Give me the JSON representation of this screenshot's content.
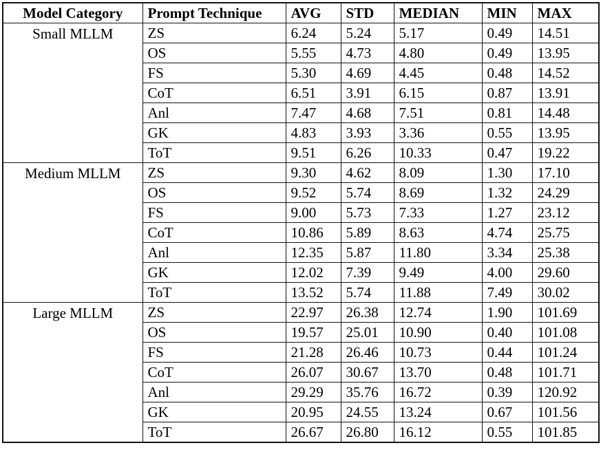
{
  "table": {
    "columns": [
      "Model Category",
      "Prompt Technique",
      "AVG",
      "STD",
      "MEDIAN",
      "MIN",
      "MAX"
    ],
    "groups": [
      {
        "category": "Small MLLM",
        "rows": [
          {
            "technique": "ZS",
            "avg": "6.24",
            "std": "5.24",
            "median": "5.17",
            "min": "0.49",
            "max": "14.51"
          },
          {
            "technique": "OS",
            "avg": "5.55",
            "std": "4.73",
            "median": "4.80",
            "min": "0.49",
            "max": "13.95"
          },
          {
            "technique": "FS",
            "avg": "5.30",
            "std": "4.69",
            "median": "4.45",
            "min": "0.48",
            "max": "14.52"
          },
          {
            "technique": "CoT",
            "avg": "6.51",
            "std": "3.91",
            "median": "6.15",
            "min": "0.87",
            "max": "13.91"
          },
          {
            "technique": "Anl",
            "avg": "7.47",
            "std": "4.68",
            "median": "7.51",
            "min": "0.81",
            "max": "14.48"
          },
          {
            "technique": "GK",
            "avg": "4.83",
            "std": "3.93",
            "median": "3.36",
            "min": "0.55",
            "max": "13.95"
          },
          {
            "technique": "ToT",
            "avg": "9.51",
            "std": "6.26",
            "median": "10.33",
            "min": "0.47",
            "max": "19.22"
          }
        ]
      },
      {
        "category": "Medium MLLM",
        "rows": [
          {
            "technique": "ZS",
            "avg": "9.30",
            "std": "4.62",
            "median": "8.09",
            "min": "1.30",
            "max": "17.10"
          },
          {
            "technique": "OS",
            "avg": "9.52",
            "std": "5.74",
            "median": "8.69",
            "min": "1.32",
            "max": "24.29"
          },
          {
            "technique": "FS",
            "avg": "9.00",
            "std": "5.73",
            "median": "7.33",
            "min": "1.27",
            "max": "23.12"
          },
          {
            "technique": "CoT",
            "avg": "10.86",
            "std": "5.89",
            "median": "8.63",
            "min": "4.74",
            "max": "25.75"
          },
          {
            "technique": "Anl",
            "avg": "12.35",
            "std": "5.87",
            "median": "11.80",
            "min": "3.34",
            "max": "25.38"
          },
          {
            "technique": "GK",
            "avg": "12.02",
            "std": "7.39",
            "median": "9.49",
            "min": "4.00",
            "max": "29.60"
          },
          {
            "technique": "ToT",
            "avg": "13.52",
            "std": "5.74",
            "median": "11.88",
            "min": "7.49",
            "max": "30.02"
          }
        ]
      },
      {
        "category": "Large MLLM",
        "rows": [
          {
            "technique": "ZS",
            "avg": "22.97",
            "std": "26.38",
            "median": "12.74",
            "min": "1.90",
            "max": "101.69"
          },
          {
            "technique": "OS",
            "avg": "19.57",
            "std": "25.01",
            "median": "10.90",
            "min": "0.40",
            "max": "101.08"
          },
          {
            "technique": "FS",
            "avg": "21.28",
            "std": "26.46",
            "median": "10.73",
            "min": "0.44",
            "max": "101.24"
          },
          {
            "technique": "CoT",
            "avg": "26.07",
            "std": "30.67",
            "median": "13.70",
            "min": "0.48",
            "max": "101.71"
          },
          {
            "technique": "Anl",
            "avg": "29.29",
            "std": "35.76",
            "median": "16.72",
            "min": "0.39",
            "max": "120.92"
          },
          {
            "technique": "GK",
            "avg": "20.95",
            "std": "24.55",
            "median": "13.24",
            "min": "0.67",
            "max": "101.56"
          },
          {
            "technique": "ToT",
            "avg": "26.67",
            "std": "26.80",
            "median": "16.12",
            "min": "0.55",
            "max": "101.85"
          }
        ]
      }
    ]
  }
}
